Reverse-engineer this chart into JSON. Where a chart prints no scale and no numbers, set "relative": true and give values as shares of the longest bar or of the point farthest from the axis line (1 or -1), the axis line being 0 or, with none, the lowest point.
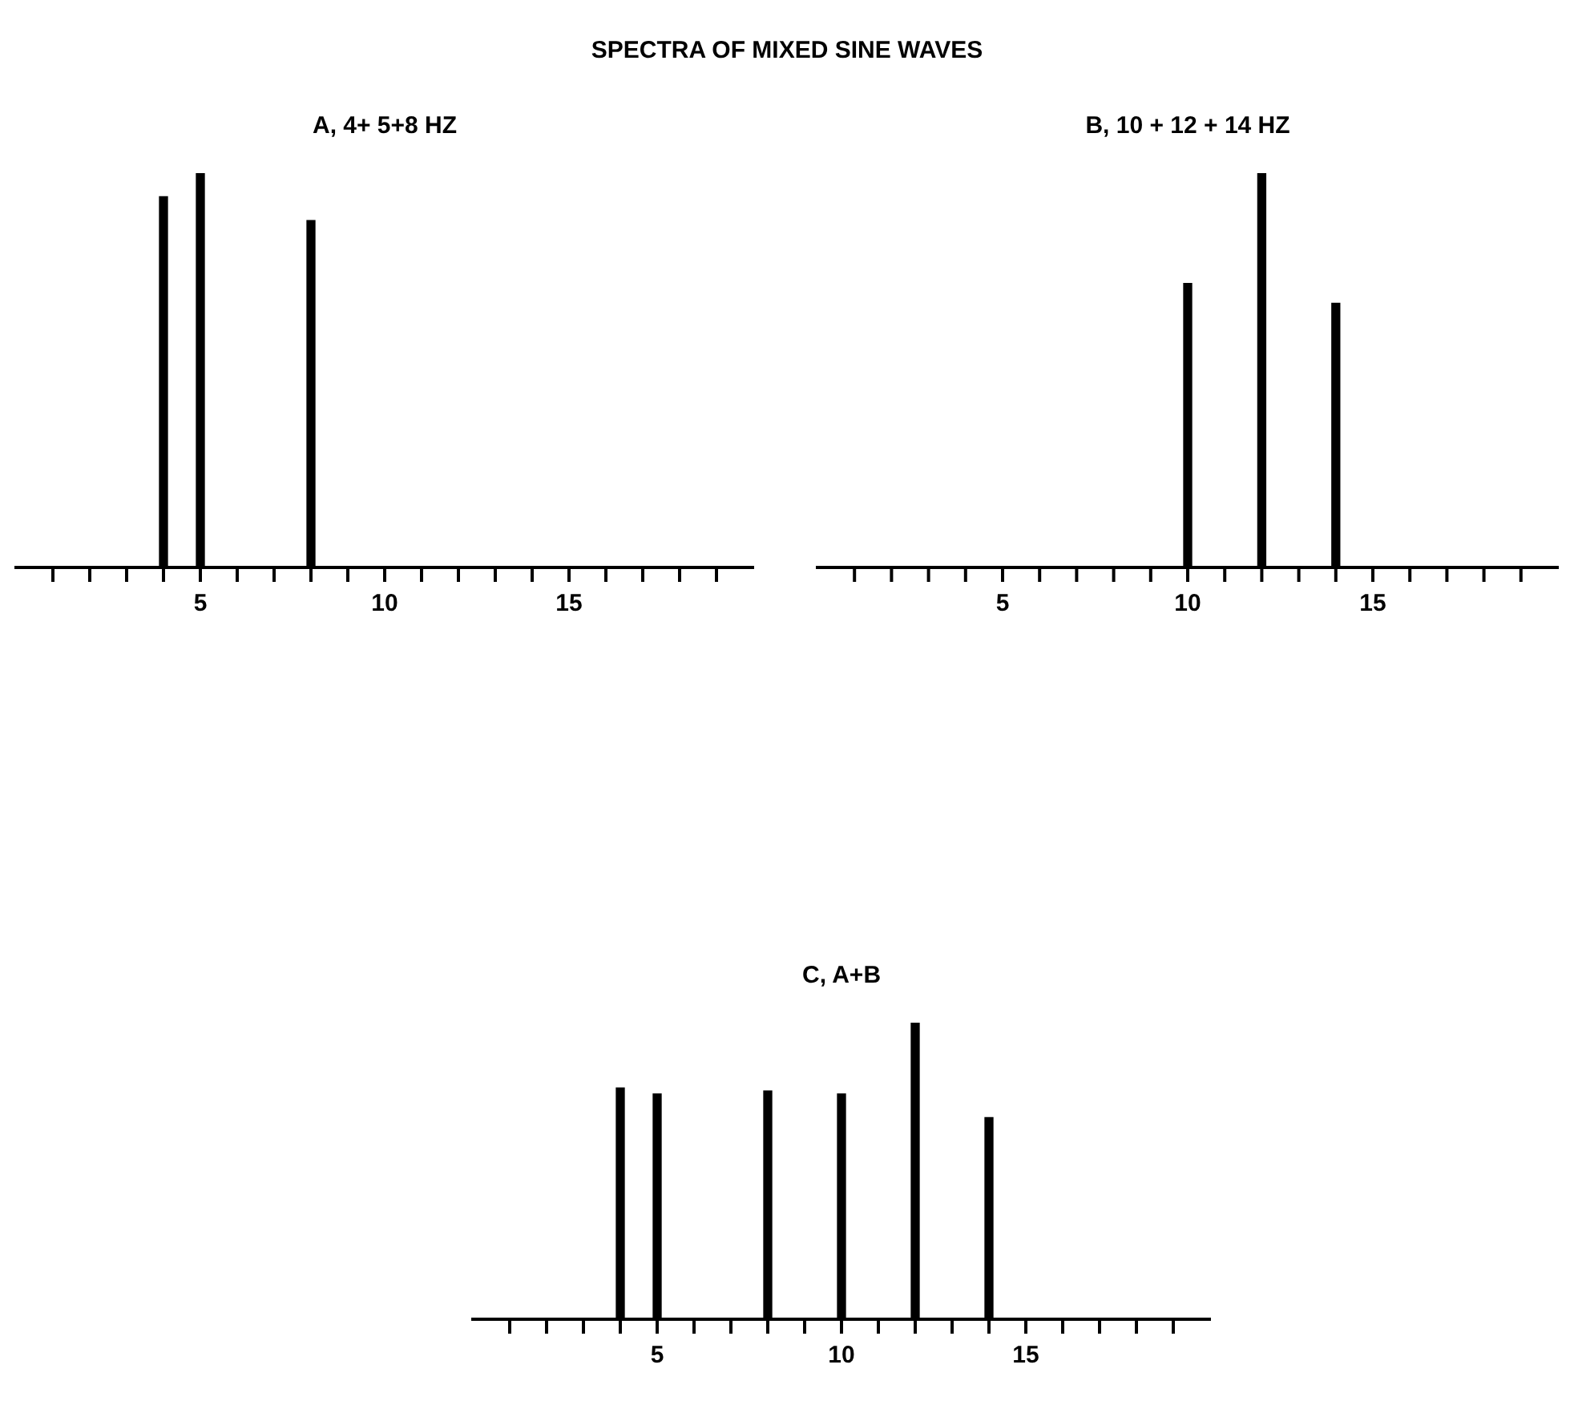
{
  "chart_data": [
    {
      "type": "bar",
      "title": "SPECTRA OF MIXED SINE WAVES",
      "subtitle": "A, 4+ 5+8 HZ",
      "relative": true,
      "x": [
        4,
        5,
        8
      ],
      "values": [
        0.94,
        1,
        0.88
      ],
      "color": "#000000",
      "xlim": [
        0,
        20
      ],
      "xticks": [
        {
          "value": 1,
          "label": null
        },
        {
          "value": 2,
          "label": null
        },
        {
          "value": 3,
          "label": null
        },
        {
          "value": 4,
          "label": null
        },
        5,
        {
          "value": 6,
          "label": null
        },
        {
          "value": 7,
          "label": null
        },
        {
          "value": 8,
          "label": null
        },
        {
          "value": 9,
          "label": null
        },
        10,
        {
          "value": 11,
          "label": null
        },
        {
          "value": 12,
          "label": null
        },
        {
          "value": 13,
          "label": null
        },
        {
          "value": 14,
          "label": null
        },
        15,
        {
          "value": 16,
          "label": null
        },
        {
          "value": 17,
          "label": null
        },
        {
          "value": 18,
          "label": null
        },
        {
          "value": 19,
          "label": null
        }
      ]
    },
    {
      "type": "bar",
      "title": "B, 10 + 12 + 14 HZ",
      "relative": true,
      "x": [
        10,
        12,
        14
      ],
      "values": [
        0.72,
        1,
        0.67
      ],
      "color": "#000000",
      "xlim": [
        0,
        20
      ],
      "xticks": [
        {
          "value": 1,
          "label": null
        },
        {
          "value": 2,
          "label": null
        },
        {
          "value": 3,
          "label": null
        },
        {
          "value": 4,
          "label": null
        },
        5,
        {
          "value": 6,
          "label": null
        },
        {
          "value": 7,
          "label": null
        },
        {
          "value": 8,
          "label": null
        },
        {
          "value": 9,
          "label": null
        },
        10,
        {
          "value": 11,
          "label": null
        },
        {
          "value": 12,
          "label": null
        },
        {
          "value": 13,
          "label": null
        },
        {
          "value": 14,
          "label": null
        },
        15,
        {
          "value": 16,
          "label": null
        },
        {
          "value": 17,
          "label": null
        },
        {
          "value": 18,
          "label": null
        },
        {
          "value": 19,
          "label": null
        }
      ]
    },
    {
      "type": "bar",
      "title": "C, A+B",
      "relative": true,
      "x": [
        4,
        5,
        8,
        10,
        12,
        14
      ],
      "values": [
        0.78,
        0.76,
        0.77,
        0.76,
        1,
        0.68
      ],
      "color": "#000000",
      "xlim": [
        0,
        20
      ],
      "xticks": [
        {
          "value": 1,
          "label": null
        },
        {
          "value": 2,
          "label": null
        },
        {
          "value": 3,
          "label": null
        },
        {
          "value": 4,
          "label": null
        },
        5,
        {
          "value": 6,
          "label": null
        },
        {
          "value": 7,
          "label": null
        },
        {
          "value": 8,
          "label": null
        },
        {
          "value": 9,
          "label": null
        },
        10,
        {
          "value": 11,
          "label": null
        },
        {
          "value": 12,
          "label": null
        },
        {
          "value": 13,
          "label": null
        },
        {
          "value": 14,
          "label": null
        },
        15,
        {
          "value": 16,
          "label": null
        },
        {
          "value": 17,
          "label": null
        },
        {
          "value": 18,
          "label": null
        },
        {
          "value": 19,
          "label": null
        }
      ]
    }
  ]
}
